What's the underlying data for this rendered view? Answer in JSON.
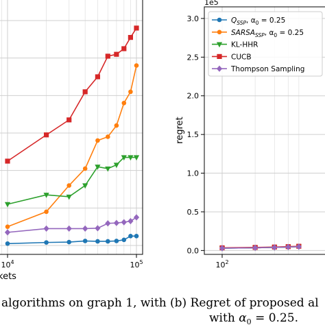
{
  "chart_data": [
    {
      "type": "line",
      "title": "",
      "xlabel_fragment": "kets",
      "ylabel": "",
      "xscale": "log",
      "xticks": [
        {
          "value": 10000,
          "base": "10",
          "exp": "4"
        },
        {
          "value": 100000,
          "base": "10",
          "exp": "5"
        }
      ],
      "grid": true,
      "series": [
        {
          "color": "#1f77b4",
          "marker": "circle",
          "x": [
            10000,
            20000,
            30000,
            40000,
            50000,
            60000,
            70000,
            80000,
            90000,
            100000
          ],
          "y": [
            0.05,
            0.08,
            0.09,
            0.12,
            0.11,
            0.11,
            0.12,
            0.15,
            0.25,
            0.25
          ]
        },
        {
          "color": "#ff7f0e",
          "marker": "circle",
          "x": [
            10000,
            20000,
            30000,
            40000,
            50000,
            60000,
            70000,
            80000,
            90000,
            100000
          ],
          "y": [
            0.5,
            0.9,
            1.6,
            2.05,
            2.8,
            2.9,
            3.2,
            3.8,
            4.1,
            4.8
          ]
        },
        {
          "color": "#2ca02c",
          "marker": "triangle-down",
          "x": [
            10000,
            20000,
            30000,
            40000,
            50000,
            60000,
            70000,
            80000,
            90000,
            100000
          ],
          "y": [
            1.1,
            1.35,
            1.3,
            1.6,
            2.1,
            2.05,
            2.15,
            2.35,
            2.35,
            2.35
          ]
        },
        {
          "color": "#d62728",
          "marker": "square",
          "x": [
            10000,
            20000,
            30000,
            40000,
            50000,
            60000,
            70000,
            80000,
            90000,
            100000
          ],
          "y": [
            2.25,
            2.95,
            3.35,
            4.1,
            4.5,
            5.05,
            5.1,
            5.25,
            5.55,
            5.8
          ]
        },
        {
          "color": "#9467bd",
          "marker": "diamond",
          "x": [
            10000,
            20000,
            30000,
            40000,
            50000,
            60000,
            70000,
            80000,
            90000,
            100000
          ],
          "y": [
            0.35,
            0.45,
            0.45,
            0.45,
            0.46,
            0.59,
            0.6,
            0.62,
            0.65,
            0.75
          ]
        }
      ]
    },
    {
      "type": "line",
      "title": "",
      "xlabel": "",
      "ylabel": "regret",
      "xscale": "log",
      "xticks": [
        {
          "value": 100,
          "base": "10",
          "exp": "2"
        }
      ],
      "y_multiplier": "1e5",
      "yticks": [
        "0.0",
        "0.5",
        "1.0",
        "1.5",
        "2.0",
        "2.5",
        "3.0"
      ],
      "ylim": [
        -0.05,
        3.15
      ],
      "grid": true,
      "legend_position": "top-left",
      "series": [
        {
          "name_main": "Q",
          "name_sub": "SSP",
          "name_suffix": ", α",
          "name_sub2": "0",
          "name_tail": " = 0.25",
          "color": "#1f77b4",
          "marker": "circle",
          "x": [
            100,
            200,
            300,
            400,
            500
          ],
          "y": [
            0.03,
            0.035,
            0.04,
            0.045,
            0.05
          ]
        },
        {
          "name_main": "SARSA",
          "name_sub": "SSP",
          "name_suffix": ", α",
          "name_sub2": "0",
          "name_tail": " = 0.25",
          "color": "#ff7f0e",
          "marker": "circle",
          "x": [
            100,
            200,
            300,
            400,
            500
          ],
          "y": [
            0.032,
            0.038,
            0.043,
            0.048,
            0.053
          ]
        },
        {
          "name": "KL-HHR",
          "color": "#2ca02c",
          "marker": "triangle-down",
          "x": [
            100,
            200,
            300,
            400,
            500
          ],
          "y": [
            0.03,
            0.035,
            0.04,
            0.045,
            0.05
          ]
        },
        {
          "name": "CUCB",
          "color": "#d62728",
          "marker": "square",
          "x": [
            100,
            200,
            300,
            400,
            500
          ],
          "y": [
            0.035,
            0.04,
            0.045,
            0.05,
            0.055
          ]
        },
        {
          "name": "Thompson Sampling",
          "color": "#9467bd",
          "marker": "diamond",
          "x": [
            100,
            200,
            300,
            400,
            500
          ],
          "y": [
            0.03,
            0.035,
            0.04,
            0.045,
            0.05
          ]
        }
      ]
    }
  ],
  "caption": {
    "line1_left": "algorithms on graph 1, with",
    "line1_right": "(b)  Regret of proposed al",
    "line2_pre": "with ",
    "line2_alpha": "α",
    "line2_sub": "0",
    "line2_post": " = 0.25."
  }
}
